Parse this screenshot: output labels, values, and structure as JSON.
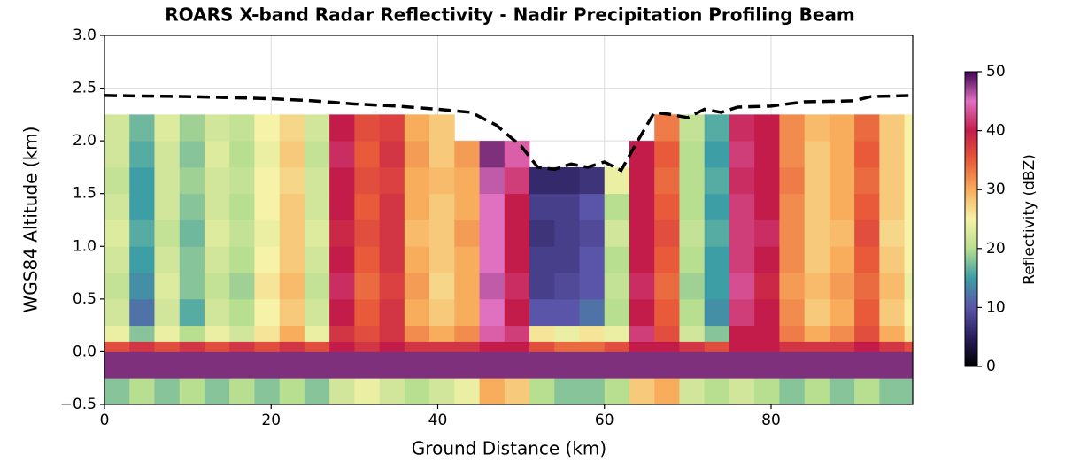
{
  "chart_data": {
    "type": "heatmap",
    "title": "ROARS X-band Radar Reflectivity - Nadir Precipitation Profiling Beam",
    "xlabel": "Ground Distance (km)",
    "ylabel": "WGS84 Altitude (km)",
    "xlim": [
      0,
      97
    ],
    "ylim": [
      -0.5,
      3.0
    ],
    "xticks": [
      0,
      20,
      40,
      60,
      80
    ],
    "yticks": [
      {
        "value": -0.5,
        "label": "−0.5"
      },
      {
        "value": 0,
        "label": "0.0"
      },
      {
        "value": 0.5,
        "label": "0.5"
      },
      {
        "value": 1,
        "label": "1.0"
      },
      {
        "value": 1.5,
        "label": "1.5"
      },
      {
        "value": 2,
        "label": "2.0"
      },
      {
        "value": 2.5,
        "label": "2.5"
      },
      {
        "value": 3,
        "label": "3.0"
      }
    ],
    "grid": true,
    "x_edges": [
      0,
      3,
      6,
      9,
      12,
      15,
      18,
      21,
      24,
      27,
      30,
      33,
      36,
      39,
      42,
      45,
      48,
      51,
      54,
      57,
      60,
      63,
      66,
      69,
      72,
      75,
      78,
      81,
      84,
      87,
      90,
      93,
      96,
      97
    ],
    "y_edges": [
      -0.5,
      -0.25,
      0,
      0.1,
      0.25,
      0.5,
      0.75,
      1.0,
      1.25,
      1.5,
      1.75,
      2.0,
      2.25
    ],
    "z": [
      [
        18,
        20,
        18,
        20,
        18,
        20,
        18,
        20,
        18,
        22,
        24,
        22,
        20,
        22,
        24,
        30,
        28,
        20,
        18,
        18,
        20,
        28,
        30,
        22,
        20,
        22,
        20,
        18,
        20,
        18,
        20,
        18,
        18
      ],
      [
        48,
        48,
        48,
        48,
        48,
        48,
        48,
        48,
        48,
        48,
        48,
        48,
        48,
        48,
        48,
        48,
        48,
        48,
        48,
        48,
        48,
        48,
        48,
        48,
        48,
        48,
        48,
        48,
        48,
        48,
        48,
        48,
        48
      ],
      [
        36,
        38,
        36,
        38,
        36,
        38,
        36,
        38,
        36,
        40,
        38,
        40,
        38,
        38,
        38,
        40,
        40,
        36,
        34,
        34,
        36,
        40,
        40,
        38,
        36,
        40,
        40,
        38,
        38,
        38,
        40,
        38,
        36
      ],
      [
        24,
        18,
        24,
        20,
        24,
        22,
        26,
        30,
        24,
        38,
        36,
        38,
        32,
        30,
        32,
        44,
        42,
        26,
        24,
        26,
        24,
        42,
        36,
        22,
        18,
        40,
        40,
        33,
        30,
        32,
        36,
        30,
        26
      ],
      [
        22,
        12,
        22,
        16,
        22,
        20,
        25,
        28,
        22,
        40,
        35,
        38,
        30,
        28,
        30,
        45,
        40,
        10,
        10,
        12,
        20,
        40,
        35,
        20,
        14,
        42,
        40,
        32,
        28,
        30,
        35,
        28,
        25
      ],
      [
        21,
        14,
        23,
        18,
        21,
        19,
        26,
        29,
        21,
        41,
        34,
        37,
        31,
        27,
        30,
        46,
        41,
        8,
        9,
        10,
        21,
        41,
        34,
        19,
        15,
        43,
        39,
        31,
        29,
        31,
        34,
        29,
        24
      ],
      [
        22,
        15,
        22,
        18,
        22,
        20,
        25,
        28,
        22,
        40,
        35,
        38,
        30,
        28,
        30,
        45,
        40,
        8,
        8,
        10,
        20,
        40,
        35,
        20,
        15,
        42,
        40,
        32,
        28,
        30,
        35,
        28,
        25
      ],
      [
        23,
        16,
        21,
        17,
        23,
        21,
        24,
        28,
        23,
        39,
        36,
        38,
        29,
        28,
        31,
        45,
        40,
        7,
        8,
        9,
        22,
        40,
        36,
        21,
        16,
        42,
        41,
        32,
        28,
        29,
        36,
        27,
        25
      ],
      [
        22,
        15,
        22,
        18,
        22,
        20,
        25,
        28,
        22,
        40,
        35,
        38,
        30,
        28,
        30,
        45,
        40,
        8,
        8,
        10,
        20,
        40,
        35,
        20,
        15,
        42,
        40,
        32,
        28,
        30,
        35,
        28,
        25
      ],
      [
        21,
        15,
        22,
        19,
        22,
        21,
        25,
        27,
        22,
        40,
        36,
        37,
        30,
        29,
        30,
        46,
        42,
        6,
        6,
        7,
        24,
        40,
        34,
        20,
        16,
        41,
        40,
        33,
        28,
        30,
        34,
        28,
        25
      ],
      [
        22,
        16,
        22,
        18,
        23,
        20,
        24,
        28,
        21,
        41,
        35,
        38,
        31,
        28,
        31,
        48,
        44,
        null,
        null,
        null,
        null,
        40,
        35,
        20,
        15,
        42,
        40,
        32,
        28,
        30,
        35,
        28,
        25
      ],
      [
        22,
        17,
        23,
        19,
        22,
        21,
        25,
        27,
        22,
        40,
        36,
        37,
        30,
        28,
        null,
        null,
        null,
        null,
        null,
        null,
        null,
        null,
        33,
        21,
        16,
        41,
        40,
        32,
        29,
        30,
        34,
        28,
        25
      ]
    ],
    "colormap": [
      "#000000",
      "#2a1e5c",
      "#5a55a8",
      "#3e9ea6",
      "#b8de90",
      "#f6f3a8",
      "#f7ad5c",
      "#e85a3a",
      "#c41c4a",
      "#e070c0",
      "#3e0650"
    ],
    "clim": [
      0,
      50
    ],
    "colorbar_label": "Reflectivity (dBZ)",
    "colorbar_ticks": [
      0,
      10,
      20,
      30,
      40,
      50
    ],
    "line": {
      "color": "#000000",
      "x": [
        0,
        10,
        20,
        25,
        30,
        35,
        40,
        44,
        47,
        50,
        52,
        54,
        56,
        58,
        60,
        62,
        64,
        66,
        68,
        70,
        72,
        74,
        76,
        80,
        84,
        90,
        92,
        97
      ],
      "y": [
        2.43,
        2.42,
        2.4,
        2.38,
        2.35,
        2.33,
        2.3,
        2.27,
        2.15,
        1.95,
        1.75,
        1.73,
        1.78,
        1.75,
        1.8,
        1.72,
        2.0,
        2.27,
        2.25,
        2.22,
        2.3,
        2.27,
        2.32,
        2.33,
        2.37,
        2.38,
        2.42,
        2.43
      ]
    }
  }
}
